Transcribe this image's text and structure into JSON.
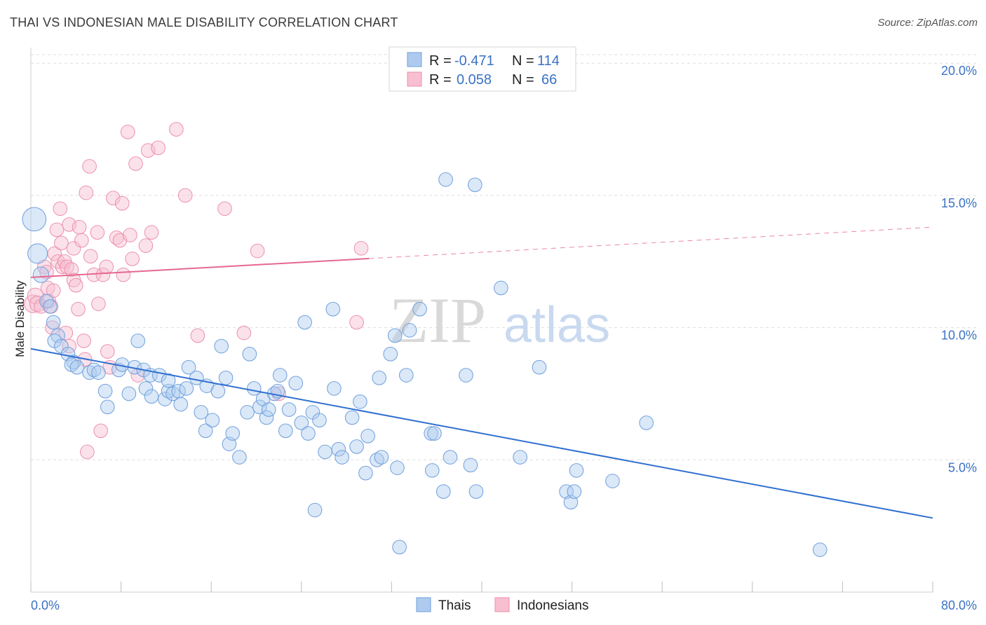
{
  "title": "THAI VS INDONESIAN MALE DISABILITY CORRELATION CHART",
  "source": "Source: ZipAtlas.com",
  "watermark": {
    "zip": "ZIP",
    "atlas": "atlas"
  },
  "legend_top": [
    {
      "r_label": "R =",
      "r_value": "-0.471",
      "n_label": "N =",
      "n_value": "114"
    },
    {
      "r_label": "R =",
      "r_value": "0.058",
      "n_label": "N =",
      "n_value": "66"
    }
  ],
  "legend_bottom": [
    "Thais",
    "Indonesians"
  ],
  "colors": {
    "thais_fill": "#aecbef",
    "thais_stroke": "#6f9fdc",
    "thais_line": "#2f6fcf",
    "indo_fill": "#f7bfd0",
    "indo_stroke": "#ec8fad",
    "indo_line": "#e5688f",
    "tick_text": "#3b72c4",
    "grid": "#dddddd"
  },
  "chart_data": {
    "type": "scatter",
    "title": "THAI VS INDONESIAN MALE DISABILITY CORRELATION CHART",
    "xlabel": "",
    "ylabel": "Male Disability",
    "xlim": [
      0,
      80
    ],
    "ylim": [
      0,
      20.8
    ],
    "x_tick_labels": [
      "0.0%",
      "80.0%"
    ],
    "y_ticks": [
      5,
      10,
      15,
      20
    ],
    "y_tick_labels": [
      "5.0%",
      "10.0%",
      "15.0%",
      "20.0%"
    ],
    "grid": "horizontal dashed",
    "legend": "top-center",
    "series": [
      {
        "name": "Thais",
        "r": -0.471,
        "n": 114,
        "trend": {
          "x0": 0,
          "y0": 9.2,
          "x1": 80,
          "y1": 2.8
        },
        "points": [
          [
            0.3,
            14.1,
            12
          ],
          [
            0.6,
            12.8,
            10
          ],
          [
            0.9,
            12.0,
            8
          ],
          [
            1.4,
            11.0,
            7
          ],
          [
            1.7,
            10.8,
            7
          ],
          [
            2.0,
            10.2,
            7
          ],
          [
            2.4,
            9.7,
            7
          ],
          [
            2.1,
            9.5,
            7
          ],
          [
            2.7,
            9.3,
            7
          ],
          [
            3.3,
            9.0,
            7
          ],
          [
            3.8,
            8.7,
            7
          ],
          [
            3.6,
            8.6,
            7
          ],
          [
            4.1,
            8.5,
            7
          ],
          [
            5.2,
            8.3,
            7
          ],
          [
            5.6,
            8.4,
            7
          ],
          [
            6.0,
            8.3,
            7
          ],
          [
            6.6,
            7.6,
            7
          ],
          [
            6.8,
            7.0,
            7
          ],
          [
            7.8,
            8.4,
            7
          ],
          [
            8.1,
            8.6,
            7
          ],
          [
            8.7,
            7.5,
            7
          ],
          [
            9.2,
            8.5,
            7
          ],
          [
            9.5,
            9.5,
            7
          ],
          [
            10.0,
            8.4,
            7
          ],
          [
            10.2,
            7.7,
            7
          ],
          [
            10.6,
            8.2,
            7
          ],
          [
            10.7,
            7.4,
            7
          ],
          [
            11.4,
            8.2,
            7
          ],
          [
            11.9,
            7.3,
            7
          ],
          [
            12.2,
            7.6,
            7
          ],
          [
            12.2,
            8.0,
            7
          ],
          [
            12.6,
            7.5,
            7
          ],
          [
            13.1,
            7.6,
            7
          ],
          [
            13.3,
            7.1,
            7
          ],
          [
            13.8,
            7.7,
            7
          ],
          [
            14.0,
            8.5,
            7
          ],
          [
            14.7,
            8.1,
            7
          ],
          [
            15.1,
            6.8,
            7
          ],
          [
            15.5,
            6.1,
            7
          ],
          [
            15.6,
            7.8,
            7
          ],
          [
            16.1,
            6.5,
            7
          ],
          [
            16.6,
            7.6,
            7
          ],
          [
            16.9,
            9.3,
            7
          ],
          [
            17.3,
            8.1,
            7
          ],
          [
            17.6,
            5.6,
            7
          ],
          [
            17.9,
            6.0,
            7
          ],
          [
            18.5,
            5.1,
            7
          ],
          [
            19.2,
            6.8,
            7
          ],
          [
            19.4,
            9.0,
            7
          ],
          [
            19.8,
            7.7,
            7
          ],
          [
            20.3,
            7.0,
            7
          ],
          [
            20.6,
            7.3,
            7
          ],
          [
            20.9,
            6.6,
            7
          ],
          [
            21.1,
            6.9,
            7
          ],
          [
            21.6,
            7.5,
            7
          ],
          [
            21.9,
            7.6,
            7
          ],
          [
            22.1,
            8.2,
            7
          ],
          [
            22.6,
            6.1,
            7
          ],
          [
            22.9,
            6.9,
            7
          ],
          [
            23.5,
            7.9,
            7
          ],
          [
            24.0,
            6.4,
            7
          ],
          [
            24.3,
            10.2,
            7
          ],
          [
            24.6,
            6.0,
            7
          ],
          [
            25.0,
            6.8,
            7
          ],
          [
            25.2,
            3.1,
            7
          ],
          [
            25.6,
            6.5,
            7
          ],
          [
            26.1,
            5.3,
            7
          ],
          [
            26.9,
            7.7,
            7
          ],
          [
            26.8,
            10.7,
            7
          ],
          [
            27.3,
            5.4,
            7
          ],
          [
            27.6,
            5.1,
            7
          ],
          [
            28.5,
            6.6,
            7
          ],
          [
            28.9,
            5.5,
            7
          ],
          [
            29.2,
            7.2,
            7
          ],
          [
            29.7,
            4.5,
            7
          ],
          [
            29.9,
            5.9,
            7
          ],
          [
            30.7,
            5.0,
            7
          ],
          [
            30.9,
            8.1,
            7
          ],
          [
            31.1,
            5.1,
            7
          ],
          [
            31.9,
            9.0,
            7
          ],
          [
            32.3,
            9.7,
            7
          ],
          [
            32.5,
            4.7,
            7
          ],
          [
            32.7,
            1.7,
            7
          ],
          [
            33.3,
            8.2,
            7
          ],
          [
            33.6,
            9.9,
            7
          ],
          [
            34.5,
            10.7,
            7
          ],
          [
            35.5,
            6.0,
            7
          ],
          [
            35.6,
            4.6,
            7
          ],
          [
            35.8,
            6.0,
            7
          ],
          [
            36.6,
            3.8,
            7
          ],
          [
            36.8,
            15.6,
            7
          ],
          [
            37.2,
            5.1,
            7
          ],
          [
            38.6,
            8.2,
            7
          ],
          [
            39.0,
            4.8,
            7
          ],
          [
            39.4,
            15.4,
            7
          ],
          [
            39.5,
            3.8,
            7
          ],
          [
            41.7,
            11.5,
            7
          ],
          [
            43.4,
            5.1,
            7
          ],
          [
            45.1,
            8.5,
            7
          ],
          [
            47.5,
            3.8,
            7
          ],
          [
            47.9,
            3.4,
            7
          ],
          [
            48.2,
            3.8,
            7
          ],
          [
            48.4,
            4.6,
            7
          ],
          [
            51.6,
            4.2,
            7
          ],
          [
            54.6,
            6.4,
            7
          ],
          [
            70.0,
            1.6,
            7
          ]
        ]
      },
      {
        "name": "Indonesians",
        "r": 0.058,
        "n": 66,
        "trend": {
          "x0": 0,
          "y0": 11.9,
          "x1": 80,
          "y1": 13.8,
          "solid_until_x": 30
        },
        "points": [
          [
            0.2,
            10.9,
            9
          ],
          [
            0.4,
            11.2,
            8
          ],
          [
            0.6,
            10.9,
            8
          ],
          [
            0.9,
            10.8,
            7
          ],
          [
            1.2,
            12.3,
            7
          ],
          [
            1.5,
            11.5,
            7
          ],
          [
            1.6,
            11.0,
            7
          ],
          [
            1.8,
            10.8,
            7
          ],
          [
            1.9,
            10.0,
            7
          ],
          [
            2.1,
            12.8,
            7
          ],
          [
            2.3,
            13.7,
            7
          ],
          [
            2.4,
            12.5,
            7
          ],
          [
            2.6,
            14.5,
            7
          ],
          [
            2.7,
            13.2,
            7
          ],
          [
            2.8,
            12.3,
            7
          ],
          [
            3.0,
            12.5,
            7
          ],
          [
            3.2,
            12.3,
            7
          ],
          [
            3.1,
            9.8,
            7
          ],
          [
            3.4,
            9.3,
            7
          ],
          [
            3.4,
            13.9,
            7
          ],
          [
            3.6,
            12.2,
            7
          ],
          [
            3.8,
            11.8,
            7
          ],
          [
            3.8,
            13.0,
            7
          ],
          [
            4.0,
            11.6,
            7
          ],
          [
            4.2,
            10.7,
            7
          ],
          [
            4.3,
            13.8,
            7
          ],
          [
            4.5,
            13.3,
            7
          ],
          [
            4.7,
            9.5,
            7
          ],
          [
            4.8,
            8.8,
            7
          ],
          [
            4.9,
            15.1,
            7
          ],
          [
            5.0,
            5.3,
            7
          ],
          [
            5.2,
            16.1,
            7
          ],
          [
            5.3,
            12.7,
            7
          ],
          [
            5.6,
            12.0,
            7
          ],
          [
            5.9,
            13.6,
            7
          ],
          [
            6.0,
            10.9,
            7
          ],
          [
            6.2,
            6.1,
            7
          ],
          [
            6.4,
            12.0,
            7
          ],
          [
            6.7,
            12.3,
            7
          ],
          [
            6.8,
            9.1,
            7
          ],
          [
            7.0,
            8.5,
            7
          ],
          [
            7.3,
            14.9,
            7
          ],
          [
            7.6,
            13.4,
            7
          ],
          [
            7.9,
            13.3,
            7
          ],
          [
            8.1,
            14.7,
            7
          ],
          [
            8.2,
            12.0,
            7
          ],
          [
            8.6,
            17.4,
            7
          ],
          [
            8.8,
            13.5,
            7
          ],
          [
            9.0,
            12.6,
            7
          ],
          [
            9.3,
            16.2,
            7
          ],
          [
            9.5,
            8.2,
            7
          ],
          [
            10.2,
            13.1,
            7
          ],
          [
            10.4,
            16.7,
            7
          ],
          [
            10.7,
            13.6,
            7
          ],
          [
            11.3,
            16.8,
            7
          ],
          [
            12.9,
            17.5,
            7
          ],
          [
            13.7,
            15.0,
            7
          ],
          [
            14.8,
            9.7,
            7
          ],
          [
            17.2,
            14.5,
            7
          ],
          [
            18.9,
            9.8,
            7
          ],
          [
            20.1,
            12.9,
            7
          ],
          [
            22.0,
            7.5,
            7
          ],
          [
            28.9,
            10.2,
            7
          ],
          [
            29.3,
            13.0,
            7
          ],
          [
            2.0,
            11.4,
            7
          ],
          [
            1.4,
            12.1,
            7
          ]
        ]
      }
    ]
  }
}
